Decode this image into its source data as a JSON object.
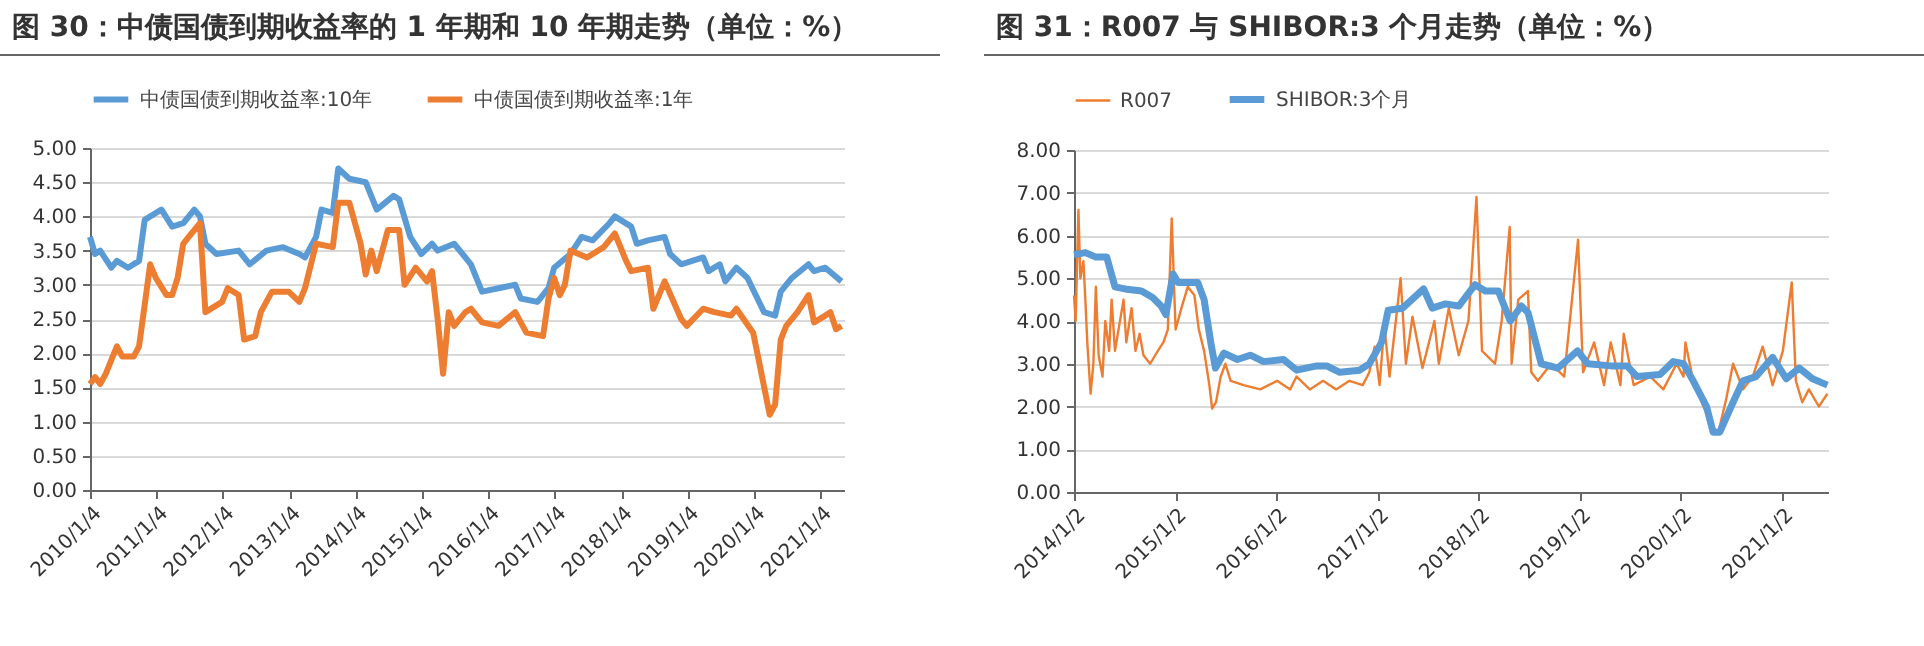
{
  "chart_data": [
    {
      "type": "line",
      "title": "图 30：中债国债到期收益率的 1 年期和 10 年期走势（单位：%）",
      "legend": "top",
      "grid": "y",
      "ylim": [
        0,
        5
      ],
      "yticks": [
        {
          "value": 0,
          "label": "0.00"
        },
        {
          "value": 0.5,
          "label": "0.50"
        },
        {
          "value": 1,
          "label": "1.00"
        },
        {
          "value": 1.5,
          "label": "1.50"
        },
        {
          "value": 2,
          "label": "2.00"
        },
        {
          "value": 2.5,
          "label": "2.50"
        },
        {
          "value": 3,
          "label": "3.00"
        },
        {
          "value": 3.5,
          "label": "3.50"
        },
        {
          "value": 4,
          "label": "4.00"
        },
        {
          "value": 4.5,
          "label": "4.50"
        },
        {
          "value": 5,
          "label": "5.00"
        }
      ],
      "xlim": [
        "2010-01-04",
        "2021-05-15"
      ],
      "xticks": [
        {
          "value": "2010-01-04",
          "label": "2010/1/4"
        },
        {
          "value": "2011-01-04",
          "label": "2011/1/4"
        },
        {
          "value": "2012-01-04",
          "label": "2012/1/4"
        },
        {
          "value": "2013-01-04",
          "label": "2013/1/4"
        },
        {
          "value": "2014-01-04",
          "label": "2014/1/4"
        },
        {
          "value": "2015-01-04",
          "label": "2015/1/4"
        },
        {
          "value": "2016-01-04",
          "label": "2016/1/4"
        },
        {
          "value": "2017-01-04",
          "label": "2017/1/4"
        },
        {
          "value": "2018-01-04",
          "label": "2018/1/4"
        },
        {
          "value": "2019-01-04",
          "label": "2019/1/4"
        },
        {
          "value": "2020-01-04",
          "label": "2020/1/4"
        },
        {
          "value": "2021-01-04",
          "label": "2021/1/4"
        }
      ],
      "series": [
        {
          "name": "中债国债到期收益率:10年",
          "color": "#5b9bd5",
          "x": [
            "2010-01-04",
            "2010-02",
            "2010-03",
            "2010-05",
            "2010-06",
            "2010-08",
            "2010-10",
            "2010-11",
            "2011-02",
            "2011-04",
            "2011-06",
            "2011-08",
            "2011-09",
            "2011-10",
            "2011-12",
            "2012-04",
            "2012-06",
            "2012-09",
            "2012-12",
            "2013-03",
            "2013-04",
            "2013-06",
            "2013-07",
            "2013-09",
            "2013-10",
            "2013-12",
            "2014-03",
            "2014-05",
            "2014-08",
            "2014-09",
            "2014-11",
            "2015-01",
            "2015-03",
            "2015-04",
            "2015-07",
            "2015-10",
            "2015-12",
            "2016-03",
            "2016-06",
            "2016-07",
            "2016-10",
            "2016-12",
            "2017-01",
            "2017-04",
            "2017-06",
            "2017-08",
            "2017-11",
            "2017-12",
            "2018-03",
            "2018-04",
            "2018-06",
            "2018-09",
            "2018-10",
            "2018-12",
            "2019-04",
            "2019-05",
            "2019-07",
            "2019-08",
            "2019-10",
            "2019-12",
            "2020-03",
            "2020-05",
            "2020-06",
            "2020-08",
            "2020-11",
            "2020-12",
            "2021-02",
            "2021-05"
          ],
          "values": [
            3.7,
            3.45,
            3.5,
            3.25,
            3.35,
            3.25,
            3.35,
            3.95,
            4.1,
            3.85,
            3.9,
            4.1,
            4.0,
            3.6,
            3.45,
            3.5,
            3.3,
            3.5,
            3.55,
            3.45,
            3.4,
            3.7,
            4.1,
            4.05,
            4.7,
            4.55,
            4.5,
            4.1,
            4.3,
            4.25,
            3.7,
            3.45,
            3.6,
            3.5,
            3.6,
            3.3,
            2.9,
            2.95,
            3.0,
            2.8,
            2.75,
            2.95,
            3.25,
            3.45,
            3.7,
            3.65,
            3.9,
            4.0,
            3.85,
            3.6,
            3.65,
            3.7,
            3.45,
            3.3,
            3.4,
            3.2,
            3.3,
            3.05,
            3.25,
            3.1,
            2.6,
            2.55,
            2.9,
            3.1,
            3.3,
            3.2,
            3.25,
            3.05
          ]
        },
        {
          "name": "中债国债到期收益率:1年",
          "color": "#ed7d31",
          "x": [
            "2010-01-04",
            "2010-02",
            "2010-03",
            "2010-04",
            "2010-06",
            "2010-07",
            "2010-09",
            "2010-10",
            "2010-12",
            "2011-01",
            "2011-03",
            "2011-04",
            "2011-05",
            "2011-06",
            "2011-07",
            "2011-09",
            "2011-10",
            "2012-01",
            "2012-02",
            "2012-04",
            "2012-05",
            "2012-07",
            "2012-08",
            "2012-10",
            "2013-01",
            "2013-03",
            "2013-04",
            "2013-06",
            "2013-09",
            "2013-10",
            "2013-12",
            "2014-02",
            "2014-03",
            "2014-04",
            "2014-05",
            "2014-07",
            "2014-09",
            "2014-10",
            "2014-12",
            "2015-02",
            "2015-03",
            "2015-04",
            "2015-05",
            "2015-06",
            "2015-07",
            "2015-09",
            "2015-10",
            "2015-12",
            "2016-03",
            "2016-06",
            "2016-08",
            "2016-11",
            "2016-12",
            "2017-01",
            "2017-02",
            "2017-03",
            "2017-04",
            "2017-07",
            "2017-10",
            "2017-12",
            "2018-02",
            "2018-03",
            "2018-06",
            "2018-07",
            "2018-09",
            "2018-12",
            "2019-01",
            "2019-04",
            "2019-06",
            "2019-09",
            "2019-10",
            "2020-01",
            "2020-02",
            "2020-04",
            "2020-05",
            "2020-06",
            "2020-07",
            "2020-09",
            "2020-11",
            "2020-12",
            "2021-02",
            "2021-03",
            "2021-04",
            "2021-05"
          ],
          "values": [
            1.55,
            1.65,
            1.55,
            1.7,
            2.1,
            1.95,
            1.95,
            2.1,
            3.3,
            3.1,
            2.85,
            2.85,
            3.1,
            3.6,
            3.7,
            3.9,
            2.6,
            2.75,
            2.95,
            2.85,
            2.2,
            2.25,
            2.6,
            2.9,
            2.9,
            2.75,
            2.95,
            3.6,
            3.55,
            4.2,
            4.2,
            3.6,
            3.15,
            3.5,
            3.2,
            3.8,
            3.8,
            3.0,
            3.25,
            3.05,
            3.2,
            2.5,
            1.7,
            2.6,
            2.4,
            2.6,
            2.65,
            2.45,
            2.4,
            2.6,
            2.3,
            2.25,
            2.8,
            3.1,
            2.85,
            3.0,
            3.5,
            3.4,
            3.55,
            3.75,
            3.35,
            3.2,
            3.25,
            2.65,
            3.05,
            2.5,
            2.4,
            2.65,
            2.6,
            2.55,
            2.65,
            2.3,
            1.9,
            1.1,
            1.25,
            2.2,
            2.4,
            2.6,
            2.85,
            2.45,
            2.55,
            2.6,
            2.35,
            2.4
          ]
        }
      ]
    },
    {
      "type": "line",
      "title": "图 31：R007 与 SHIBOR:3 个月走势（单位：%）",
      "legend": "top",
      "grid": "y",
      "ylim": [
        0,
        8
      ],
      "yticks": [
        {
          "value": 0,
          "label": "0.00"
        },
        {
          "value": 1,
          "label": "1.00"
        },
        {
          "value": 2,
          "label": "2.00"
        },
        {
          "value": 3,
          "label": "3.00"
        },
        {
          "value": 4,
          "label": "4.00"
        },
        {
          "value": 5,
          "label": "5.00"
        },
        {
          "value": 6,
          "label": "6.00"
        },
        {
          "value": 7,
          "label": "7.00"
        },
        {
          "value": 8,
          "label": "8.00"
        }
      ],
      "xlim": [
        "2014-01-02",
        "2021-06-18"
      ],
      "xticks": [
        {
          "value": "2014-01-02",
          "label": "2014/1/2"
        },
        {
          "value": "2015-01-02",
          "label": "2015/1/2"
        },
        {
          "value": "2016-01-02",
          "label": "2016/1/2"
        },
        {
          "value": "2017-01-02",
          "label": "2017/1/2"
        },
        {
          "value": "2018-01-02",
          "label": "2018/1/2"
        },
        {
          "value": "2019-01-02",
          "label": "2019/1/2"
        },
        {
          "value": "2020-01-02",
          "label": "2020/1/2"
        },
        {
          "value": "2021-01-02",
          "label": "2021/1/2"
        }
      ],
      "series": [
        {
          "name": "R007",
          "color": "#ed7d31",
          "x": [
            "2014-01-02",
            "2014-01-08",
            "2014-01-18",
            "2014-01-25",
            "2014-02-05",
            "2014-02-12",
            "2014-02-19",
            "2014-03-03",
            "2014-03-13",
            "2014-03-22",
            "2014-04-01",
            "2014-04-15",
            "2014-04-25",
            "2014-05-09",
            "2014-05-18",
            "2014-05-30",
            "2014-06-30",
            "2014-07-10",
            "2014-07-29",
            "2014-08-12",
            "2014-08-27",
            "2014-09-10",
            "2014-10-04",
            "2014-11-01",
            "2014-11-21",
            "2014-12-07",
            "2014-12-21",
            "2015-01-04",
            "2015-01-25",
            "2015-02-17",
            "2015-03-13",
            "2015-03-29",
            "2015-04-17",
            "2015-05-06",
            "2015-05-16",
            "2015-05-30",
            "2015-06-16",
            "2015-07-03",
            "2015-07-22",
            "2015-09-07",
            "2015-11-06",
            "2016-01-06",
            "2016-02-22",
            "2016-03-16",
            "2016-05-03",
            "2016-06-20",
            "2016-08-06",
            "2016-09-23",
            "2016-11-10",
            "2016-12-04",
            "2016-12-23",
            "2017-01-10",
            "2017-01-27",
            "2017-02-15",
            "2017-03-27",
            "2017-04-15",
            "2017-05-09",
            "2017-06-14",
            "2017-07-27",
            "2017-08-12",
            "2017-09-17",
            "2017-10-23",
            "2017-11-27",
            "2017-12-26",
            "2018-01-15",
            "2018-03-03",
            "2018-03-27",
            "2018-04-25",
            "2018-05-02",
            "2018-05-26",
            "2018-06-30",
            "2018-07-12",
            "2018-08-05",
            "2018-09-22",
            "2018-11-08",
            "2018-12-28",
            "2019-01-15",
            "2019-02-24",
            "2019-04-01",
            "2019-04-25",
            "2019-05-30",
            "2019-06-11",
            "2019-07-17",
            "2019-09-15",
            "2019-11-01",
            "2019-12-19",
            "2020-01-13",
            "2020-01-20",
            "2020-02-17",
            "2020-03-25",
            "2020-04-29",
            "2020-05-18",
            "2020-06-16",
            "2020-07-10",
            "2020-08-15",
            "2020-09-19",
            "2020-10-25",
            "2020-11-30",
            "2021-01-06",
            "2021-02-07",
            "2021-02-22",
            "2021-03-17",
            "2021-04-10",
            "2021-05-16",
            "2021-06-16"
          ],
          "values": [
            4.6,
            4.0,
            6.6,
            5.0,
            5.4,
            4.5,
            3.5,
            2.3,
            3.0,
            4.8,
            3.2,
            2.7,
            4.0,
            3.3,
            4.5,
            3.3,
            4.5,
            3.5,
            4.3,
            3.3,
            3.7,
            3.2,
            3.0,
            3.3,
            3.5,
            3.8,
            6.4,
            3.8,
            4.3,
            4.8,
            4.6,
            3.8,
            3.3,
            2.5,
            1.95,
            2.1,
            2.7,
            3.0,
            2.6,
            2.5,
            2.4,
            2.6,
            2.4,
            2.7,
            2.4,
            2.6,
            2.4,
            2.6,
            2.5,
            2.8,
            3.4,
            2.5,
            3.9,
            2.7,
            5.0,
            3.0,
            4.1,
            2.9,
            4.0,
            3.0,
            4.3,
            3.2,
            4.0,
            6.9,
            3.3,
            3.0,
            4.0,
            6.2,
            3.0,
            4.5,
            4.7,
            2.8,
            2.6,
            3.0,
            2.7,
            5.9,
            2.8,
            3.5,
            2.5,
            3.5,
            2.5,
            3.7,
            2.5,
            2.7,
            2.4,
            3.0,
            2.7,
            3.5,
            2.6,
            2.0,
            1.5,
            1.4,
            2.2,
            3.0,
            2.4,
            2.7,
            3.4,
            2.5,
            3.3,
            4.9,
            2.6,
            2.1,
            2.4,
            2.0,
            2.3
          ]
        },
        {
          "name": "SHIBOR:3个月",
          "color": "#5b9bd5",
          "x": [
            "2014-01-02",
            "2014-02-12",
            "2014-03-20",
            "2014-04-30",
            "2014-05-30",
            "2014-07-05",
            "2014-09-03",
            "2014-10-13",
            "2014-11-13",
            "2014-11-30",
            "2014-12-26",
            "2015-01-13",
            "2015-03-25",
            "2015-04-17",
            "2015-05-11",
            "2015-05-28",
            "2015-06-28",
            "2015-08-15",
            "2015-10-01",
            "2015-11-18",
            "2016-01-29",
            "2016-03-16",
            "2016-05-28",
            "2016-07-03",
            "2016-08-19",
            "2016-10-30",
            "2016-12-04",
            "2017-01-17",
            "2017-02-10",
            "2017-04-03",
            "2017-06-18",
            "2017-07-19",
            "2017-09-05",
            "2017-10-23",
            "2017-12-21",
            "2018-01-27",
            "2018-03-15",
            "2018-04-27",
            "2018-06-06",
            "2018-06-30",
            "2018-08-17",
            "2018-10-16",
            "2018-12-26",
            "2019-02-01",
            "2019-04-25",
            "2019-06-23",
            "2019-07-29",
            "2019-10-20",
            "2019-12-07",
            "2020-01-13",
            "2020-02-17",
            "2020-04-05",
            "2020-04-29",
            "2020-05-23",
            "2020-07-10",
            "2020-08-15",
            "2020-10-01",
            "2020-11-30",
            "2021-01-18",
            "2021-03-06",
            "2021-04-23",
            "2021-06-16"
          ],
          "values": [
            5.55,
            5.6,
            5.5,
            5.5,
            4.8,
            4.75,
            4.7,
            4.55,
            4.35,
            4.15,
            5.1,
            4.9,
            4.9,
            4.5,
            3.5,
            2.9,
            3.25,
            3.1,
            3.2,
            3.05,
            3.1,
            2.85,
            2.95,
            2.95,
            2.8,
            2.85,
            3.0,
            3.5,
            4.25,
            4.3,
            4.75,
            4.3,
            4.4,
            4.35,
            4.85,
            4.7,
            4.7,
            4.0,
            4.35,
            4.2,
            3.0,
            2.9,
            3.3,
            3.0,
            2.95,
            2.95,
            2.7,
            2.75,
            3.05,
            3.0,
            2.6,
            2.0,
            1.4,
            1.4,
            2.1,
            2.6,
            2.7,
            3.15,
            2.65,
            2.9,
            2.65,
            2.5
          ]
        }
      ]
    }
  ]
}
